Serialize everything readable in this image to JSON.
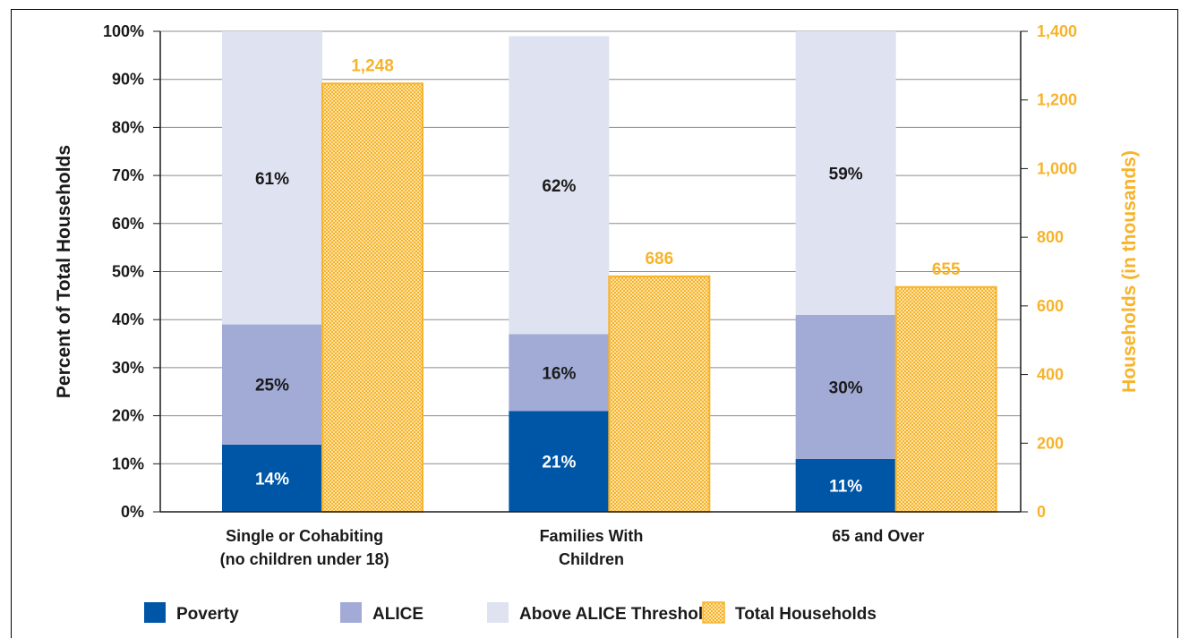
{
  "chart_data": {
    "type": "bar",
    "categories": [
      [
        "Single or Cohabiting",
        "(no children under 18)"
      ],
      [
        "Families With",
        "Children"
      ],
      [
        "65 and Over"
      ]
    ],
    "series": [
      {
        "name": "Poverty",
        "values": [
          14,
          21,
          11
        ],
        "labels": [
          "14%",
          "21%",
          "11%"
        ],
        "color": "#0056a6",
        "label_color": "#ffffff",
        "axis": "left"
      },
      {
        "name": "ALICE",
        "values": [
          25,
          16,
          30
        ],
        "labels": [
          "25%",
          "16%",
          "30%"
        ],
        "color": "#a2abd6",
        "label_color": "#1a1a1a",
        "axis": "left"
      },
      {
        "name": "Above ALICE Threshold",
        "values": [
          61,
          62,
          59
        ],
        "labels": [
          "61%",
          "62%",
          "59%"
        ],
        "color": "#dfe2f1",
        "label_color": "#1a1a1a",
        "axis": "left"
      },
      {
        "name": "Total Households",
        "values": [
          1248,
          686,
          655
        ],
        "labels": [
          "1,248",
          "686",
          "655"
        ],
        "color": "#f7b32b",
        "label_color": "#f7b32b",
        "axis": "right"
      }
    ],
    "ylabel": "Percent of Total Households",
    "ylabel_right": "Households (in thousands)",
    "ylim": [
      0,
      100
    ],
    "ylim_right": [
      0,
      1400
    ],
    "yticks": [
      "0%",
      "10%",
      "20%",
      "30%",
      "40%",
      "50%",
      "60%",
      "70%",
      "80%",
      "90%",
      "100%"
    ],
    "yticks_right": [
      "0",
      "200",
      "400",
      "600",
      "800",
      "1,000",
      "1,200",
      "1,400"
    ],
    "grid": true,
    "legend_position": "bottom"
  }
}
